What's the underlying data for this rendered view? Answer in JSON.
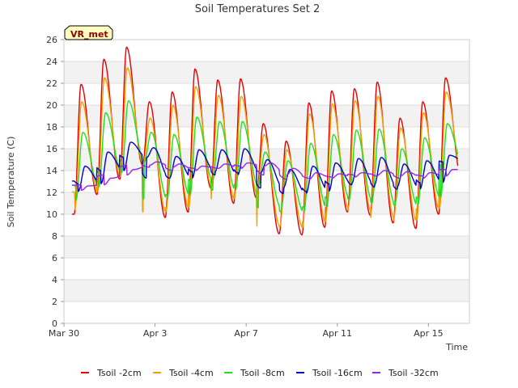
{
  "chart_data": {
    "type": "line",
    "title": "Soil Temperatures Set 2",
    "xlabel": "Time",
    "ylabel": "Soil Temperature (C)",
    "tag": "VR_met",
    "xlim": [
      0,
      17.8
    ],
    "ylim": [
      0,
      26
    ],
    "yticks": [
      0,
      2,
      4,
      6,
      8,
      10,
      12,
      14,
      16,
      18,
      20,
      22,
      24,
      26
    ],
    "xticks": [
      {
        "day": 0,
        "label": "Mar 30"
      },
      {
        "day": 4,
        "label": "Apr 3"
      },
      {
        "day": 8,
        "label": "Apr 7"
      },
      {
        "day": 12,
        "label": "Apr 11"
      },
      {
        "day": 16,
        "label": "Apr 15"
      }
    ],
    "grid": true,
    "legend_position": "bottom",
    "series": [
      {
        "name": "Tsoil -2cm",
        "color": "#e60000",
        "mins": [
          10.0,
          11.8,
          13.2,
          14.5,
          9.7,
          10.2,
          12.4,
          11.0,
          11.5,
          8.2,
          8.1,
          8.8,
          10.2,
          9.9,
          9.2,
          8.7,
          10.0
        ],
        "maxs": [
          21.9,
          24.2,
          25.3,
          20.3,
          21.2,
          23.3,
          22.3,
          22.4,
          18.3,
          16.7,
          20.2,
          21.3,
          21.5,
          22.1,
          18.8,
          20.3,
          22.5
        ],
        "end": 13.3
      },
      {
        "name": "Tsoil -4cm",
        "color": "#f0a000",
        "mins": [
          10.4,
          12.0,
          13.4,
          14.6,
          10.2,
          10.6,
          12.6,
          11.4,
          11.9,
          8.9,
          8.8,
          9.3,
          10.6,
          10.3,
          9.7,
          9.4,
          10.5
        ],
        "maxs": [
          20.3,
          22.5,
          23.4,
          18.8,
          20.0,
          21.7,
          20.9,
          20.8,
          17.3,
          15.9,
          19.2,
          20.1,
          20.4,
          20.8,
          17.9,
          19.3,
          21.2
        ],
        "end": 13.6
      },
      {
        "name": "Tsoil -8cm",
        "color": "#20e020",
        "mins": [
          11.3,
          12.5,
          13.8,
          14.8,
          11.4,
          11.7,
          13.1,
          12.2,
          12.6,
          10.6,
          10.2,
          10.6,
          11.5,
          11.3,
          11.0,
          10.8,
          11.5
        ],
        "maxs": [
          17.5,
          19.3,
          20.4,
          17.5,
          17.3,
          18.9,
          18.5,
          18.5,
          15.7,
          14.9,
          16.5,
          17.3,
          17.7,
          17.8,
          16.0,
          17.0,
          18.3
        ],
        "end": 14.5
      },
      {
        "name": "Tsoil -16cm",
        "color": "#0000c8",
        "mins": [
          12.1,
          12.8,
          14.0,
          15.2,
          13.3,
          13.3,
          13.9,
          13.6,
          13.8,
          12.4,
          11.9,
          12.1,
          12.8,
          12.7,
          12.5,
          12.3,
          12.9
        ],
        "maxs": [
          14.4,
          15.7,
          16.6,
          16.1,
          15.3,
          15.9,
          15.9,
          16.0,
          15.0,
          14.1,
          14.4,
          14.7,
          15.1,
          15.2,
          14.6,
          14.9,
          15.4
        ],
        "end": 14.8
      },
      {
        "name": "Tsoil -32cm",
        "color": "#9a22e8",
        "mins": [
          12.2,
          12.7,
          13.6,
          14.5,
          14.3,
          14.0,
          14.2,
          14.2,
          14.4,
          13.6,
          13.2,
          13.3,
          13.4,
          13.6,
          13.5,
          13.3,
          13.5
        ],
        "maxs": [
          12.6,
          13.3,
          14.1,
          14.8,
          14.6,
          14.4,
          14.6,
          14.7,
          14.7,
          14.2,
          13.8,
          13.7,
          13.8,
          14.0,
          13.9,
          13.8,
          14.1
        ],
        "end": 14.1
      }
    ]
  }
}
